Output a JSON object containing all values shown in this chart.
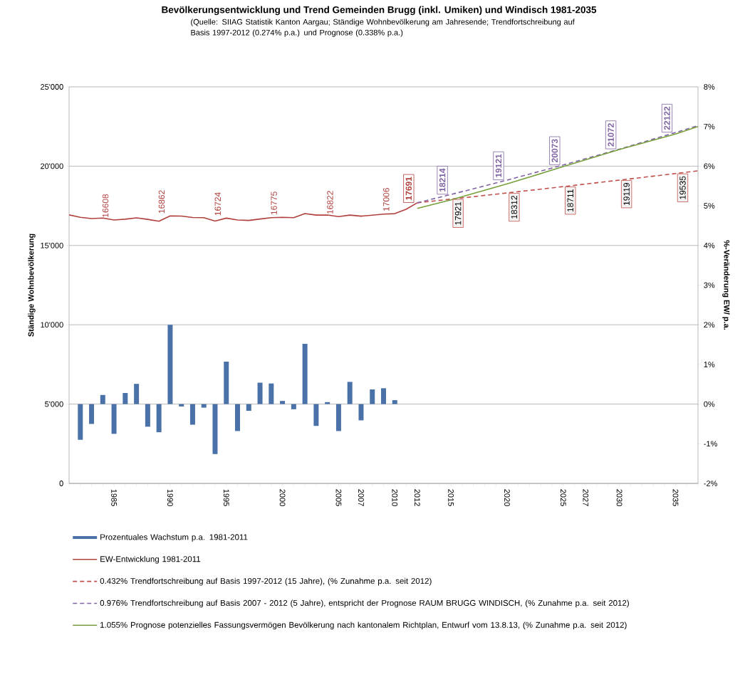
{
  "chart_data": {
    "type": "line",
    "title": "Bevölkerungsentwicklung und Trend Gemeinden Brugg (inkl. Umiken) und Windisch 1981-2035",
    "subtitle": "(Quelle: SIIAG Statistik Kanton Aargau; Ständige Wohnbevölkerung am Jahresende; Trendfortschreibung auf Basis 1997-2012 (0.274% p.a.) und Prognose (0.338% p.a.)",
    "ylabel": "Ständige Wohnbevölkerung",
    "y2label": "%-Veränderung EW/ p.a.",
    "xlim": [
      1981,
      2037
    ],
    "ylim": [
      0,
      25000
    ],
    "y2lim": [
      -2,
      8
    ],
    "yticks": [
      {
        "value": 0,
        "label": "0"
      },
      {
        "value": 5000,
        "label": "5'000"
      },
      {
        "value": 10000,
        "label": "10'000"
      },
      {
        "value": 15000,
        "label": "15'000"
      },
      {
        "value": 20000,
        "label": "20'000"
      },
      {
        "value": 25000,
        "label": "25'000"
      }
    ],
    "y2ticks": [
      {
        "value": -2,
        "label": "-2%"
      },
      {
        "value": -1,
        "label": "-1%"
      },
      {
        "value": 0,
        "label": "0%"
      },
      {
        "value": 1,
        "label": "1%"
      },
      {
        "value": 2,
        "label": "2%"
      },
      {
        "value": 3,
        "label": "3%"
      },
      {
        "value": 4,
        "label": "4%"
      },
      {
        "value": 5,
        "label": "5%"
      },
      {
        "value": 6,
        "label": "6%"
      },
      {
        "value": 7,
        "label": "7%"
      },
      {
        "value": 8,
        "label": "8%"
      }
    ],
    "xticks": [
      {
        "value": 1981,
        "label": null
      },
      {
        "value": 1982,
        "label": null
      },
      {
        "value": 1983,
        "label": null
      },
      {
        "value": 1984,
        "label": null
      },
      1985,
      {
        "value": 1986,
        "label": null
      },
      {
        "value": 1987,
        "label": null
      },
      {
        "value": 1988,
        "label": null
      },
      {
        "value": 1989,
        "label": null
      },
      1990,
      {
        "value": 1991,
        "label": null
      },
      {
        "value": 1992,
        "label": null
      },
      {
        "value": 1993,
        "label": null
      },
      {
        "value": 1994,
        "label": null
      },
      1995,
      {
        "value": 1996,
        "label": null
      },
      {
        "value": 1997,
        "label": null
      },
      {
        "value": 1998,
        "label": null
      },
      {
        "value": 1999,
        "label": null
      },
      2000,
      {
        "value": 2001,
        "label": null
      },
      {
        "value": 2002,
        "label": null
      },
      {
        "value": 2003,
        "label": null
      },
      {
        "value": 2004,
        "label": null
      },
      2005,
      {
        "value": 2006,
        "label": null
      },
      2007,
      {
        "value": 2008,
        "label": null
      },
      {
        "value": 2009,
        "label": null
      },
      2010,
      {
        "value": 2011,
        "label": null
      },
      2012,
      {
        "value": 2013,
        "label": null
      },
      {
        "value": 2014,
        "label": null
      },
      2015,
      {
        "value": 2016,
        "label": null
      },
      {
        "value": 2017,
        "label": null
      },
      {
        "value": 2018,
        "label": null
      },
      {
        "value": 2019,
        "label": null
      },
      2020,
      {
        "value": 2021,
        "label": null
      },
      {
        "value": 2022,
        "label": null
      },
      {
        "value": 2023,
        "label": null
      },
      {
        "value": 2024,
        "label": null
      },
      2025,
      {
        "value": 2026,
        "label": null
      },
      2027,
      {
        "value": 2028,
        "label": null
      },
      {
        "value": 2029,
        "label": null
      },
      2030,
      {
        "value": 2031,
        "label": null
      },
      {
        "value": 2032,
        "label": null
      },
      {
        "value": 2033,
        "label": null
      },
      {
        "value": 2034,
        "label": null
      },
      2035,
      {
        "value": 2036,
        "label": null
      },
      {
        "value": 2037,
        "label": null
      }
    ],
    "grid": "y",
    "legend": "bottom",
    "marker": "none",
    "series": [
      {
        "name": "Prozentuales Wachstum p.a. 1981-2011",
        "type": "bar",
        "axis": "y2",
        "color": "#4a72a8",
        "x": [
          1982,
          1983,
          1984,
          1985,
          1986,
          1987,
          1988,
          1989,
          1990,
          1991,
          1992,
          1993,
          1994,
          1995,
          1996,
          1997,
          1998,
          1999,
          2000,
          2001,
          2002,
          2003,
          2004,
          2005,
          2006,
          2007,
          2008,
          2009,
          2010
        ],
        "values": [
          -0.9,
          -0.5,
          0.23,
          -0.75,
          0.28,
          0.51,
          -0.57,
          -0.71,
          2.0,
          -0.06,
          -0.52,
          -0.09,
          -1.26,
          1.07,
          -0.68,
          -0.17,
          0.54,
          0.52,
          0.08,
          -0.13,
          1.52,
          -0.55,
          0.05,
          -0.68,
          0.56,
          -0.41,
          0.37,
          0.4,
          0.1
        ]
      },
      {
        "name": "EW-Entwicklung 1981-2011",
        "line_style": "solid",
        "color": "#b0403c",
        "x": [
          1981,
          1982,
          1983,
          1984,
          1985,
          1986,
          1987,
          1988,
          1989,
          1990,
          1991,
          1992,
          1993,
          1994,
          1995,
          1996,
          1997,
          1998,
          1999,
          2000,
          2001,
          2002,
          2003,
          2004,
          2005,
          2006,
          2007,
          2008,
          2009,
          2010,
          2011,
          2012
        ],
        "values": [
          16927,
          16775,
          16695,
          16733,
          16608,
          16656,
          16740,
          16645,
          16528,
          16862,
          16854,
          16763,
          16751,
          16540,
          16724,
          16610,
          16580,
          16670,
          16753,
          16775,
          16753,
          17008,
          16915,
          16923,
          16822,
          16916,
          16847,
          16910,
          16978,
          17006,
          17280,
          17691
        ],
        "value_labels": [
          null,
          null,
          null,
          null,
          "16608",
          null,
          null,
          null,
          null,
          "16862",
          null,
          null,
          null,
          null,
          "16724",
          null,
          null,
          null,
          null,
          "16775",
          null,
          null,
          null,
          null,
          "16822",
          null,
          null,
          null,
          null,
          "17006",
          null,
          "17691"
        ]
      },
      {
        "name": "0.432% Trendfortschreibung auf Basis 1997-2012 (15 Jahre), (% Zunahme p.a. seit 2012)",
        "line_style": "dashed",
        "color": "#c0504d",
        "x": [
          2012,
          2015,
          2020,
          2025,
          2030,
          2035,
          2037
        ],
        "values": [
          17691,
          17921,
          18312,
          18711,
          19119,
          19535,
          19704
        ],
        "value_labels": [
          null,
          "17921",
          "18312",
          "18711",
          "19119",
          "19535",
          null
        ]
      },
      {
        "name": "0.976% Trendfortschreibung auf Basis 2007 - 2012 (5 Jahre), entspricht der Prognose RAUM BRUGG WINDISCH, (% Zunahme p.a. seit 2012)",
        "line_style": "dashed",
        "color": "#8064a2",
        "x": [
          2012,
          2015,
          2020,
          2025,
          2030,
          2035,
          2037
        ],
        "values": [
          17691,
          18214,
          19121,
          20073,
          21072,
          22122,
          22556
        ],
        "value_labels": [
          null,
          "18214",
          "19121",
          "20073",
          "21072",
          "22122",
          null
        ]
      },
      {
        "name": "1.055% Prognose potenzielles Fassungsvermögen Bevölkerung nach kantonalem Richtplan, Entwurf vom 13.8.13, (% Zunahme p.a. seit 2012)",
        "line_style": "solid",
        "color": "#77a03c",
        "x": [
          2012,
          2015,
          2020,
          2025,
          2030,
          2035,
          2037
        ],
        "values": [
          17340,
          17877,
          18882,
          19970,
          21050,
          22025,
          22500
        ]
      }
    ]
  }
}
